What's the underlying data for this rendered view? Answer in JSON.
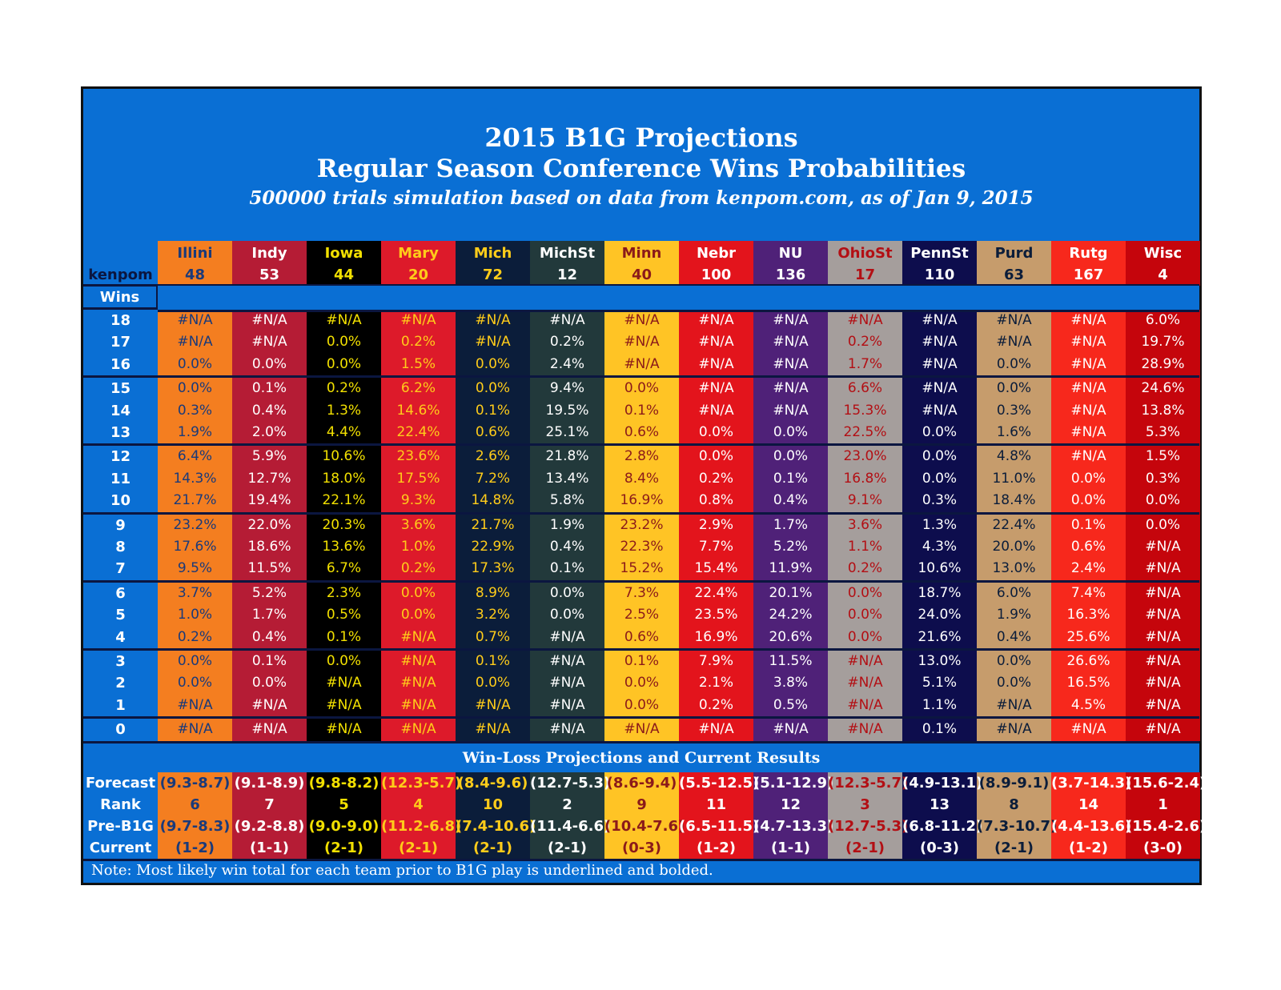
{
  "title": "2015 B1G Projections",
  "title2": "Regular Season Conference Wins Probabilities",
  "subtitle": "500000 trials simulation based on data from kenpom.com, as of Jan 9, 2015",
  "kenpom_label": "kenpom",
  "wins_label": "Wins",
  "wl_title": "Win-Loss Projections and Current Results",
  "row_labels": {
    "forecast": "Forecast",
    "rank": "Rank",
    "preb1g": "Pre-B1G",
    "current": "Current"
  },
  "note": "Note: Most likely win total for each team prior to B1G play is underlined and bolded.",
  "chart_data": {
    "type": "table",
    "title": "2015 B1G Projections",
    "subtitle": "Regular Season Conference Wins Probabilities",
    "wins": [
      "18",
      "17",
      "16",
      "15",
      "14",
      "13",
      "12",
      "11",
      "10",
      "9",
      "8",
      "7",
      "6",
      "5",
      "4",
      "3",
      "2",
      "1",
      "0"
    ],
    "teams": [
      {
        "name": "Illini",
        "kenpom": "48",
        "bg": "#f47e20",
        "fg": "#1a3a7a",
        "probs": [
          "#N/A",
          "#N/A",
          "0.0%",
          "0.0%",
          "0.3%",
          "1.9%",
          "6.4%",
          "14.3%",
          "21.7%",
          "23.2%",
          "17.6%",
          "9.5%",
          "3.7%",
          "1.0%",
          "0.2%",
          "0.0%",
          "0.0%",
          "#N/A",
          "#N/A"
        ],
        "forecast": "(9.3-8.7)",
        "rank": "6",
        "preb1g": "(9.7-8.3)",
        "current": "(1-2)"
      },
      {
        "name": "Indy",
        "kenpom": "53",
        "bg": "#b51c35",
        "fg": "#ffffff",
        "probs": [
          "#N/A",
          "#N/A",
          "0.0%",
          "0.1%",
          "0.4%",
          "2.0%",
          "5.9%",
          "12.7%",
          "19.4%",
          "22.0%",
          "18.6%",
          "11.5%",
          "5.2%",
          "1.7%",
          "0.4%",
          "0.1%",
          "0.0%",
          "#N/A",
          "#N/A"
        ],
        "forecast": "(9.1-8.9)",
        "rank": "7",
        "preb1g": "(9.2-8.8)",
        "current": "(1-1)"
      },
      {
        "name": "Iowa",
        "kenpom": "44",
        "bg": "#000000",
        "fg": "#f2e000",
        "probs": [
          "#N/A",
          "0.0%",
          "0.0%",
          "0.2%",
          "1.3%",
          "4.4%",
          "10.6%",
          "18.0%",
          "22.1%",
          "20.3%",
          "13.6%",
          "6.7%",
          "2.3%",
          "0.5%",
          "0.1%",
          "0.0%",
          "#N/A",
          "#N/A",
          "#N/A"
        ],
        "forecast": "(9.8-8.2)",
        "rank": "5",
        "preb1g": "(9.0-9.0)",
        "current": "(2-1)"
      },
      {
        "name": "Mary",
        "kenpom": "20",
        "bg": "#dd1a2a",
        "fg": "#ffcc1a",
        "probs": [
          "#N/A",
          "0.2%",
          "1.5%",
          "6.2%",
          "14.6%",
          "22.4%",
          "23.6%",
          "17.5%",
          "9.3%",
          "3.6%",
          "1.0%",
          "0.2%",
          "0.0%",
          "0.0%",
          "#N/A",
          "#N/A",
          "#N/A",
          "#N/A",
          "#N/A"
        ],
        "forecast": "(12.3-5.7)",
        "rank": "4",
        "preb1g": "(11.2-6.8)",
        "current": "(2-1)"
      },
      {
        "name": "Mich",
        "kenpom": "72",
        "bg": "#0b1d3a",
        "fg": "#ffcc1a",
        "probs": [
          "#N/A",
          "#N/A",
          "0.0%",
          "0.0%",
          "0.1%",
          "0.6%",
          "2.6%",
          "7.2%",
          "14.8%",
          "21.7%",
          "22.9%",
          "17.3%",
          "8.9%",
          "3.2%",
          "0.7%",
          "0.1%",
          "0.0%",
          "#N/A",
          "#N/A"
        ],
        "forecast": "(8.4-9.6)",
        "rank": "10",
        "preb1g": "(7.4-10.6)",
        "current": "(2-1)"
      },
      {
        "name": "MichSt",
        "kenpom": "12",
        "bg": "#22393b",
        "fg": "#ffffff",
        "probs": [
          "#N/A",
          "0.2%",
          "2.4%",
          "9.4%",
          "19.5%",
          "25.1%",
          "21.8%",
          "13.4%",
          "5.8%",
          "1.9%",
          "0.4%",
          "0.1%",
          "0.0%",
          "0.0%",
          "#N/A",
          "#N/A",
          "#N/A",
          "#N/A",
          "#N/A"
        ],
        "forecast": "(12.7-5.3)",
        "rank": "2",
        "preb1g": "(11.4-6.6)",
        "current": "(2-1)"
      },
      {
        "name": "Minn",
        "kenpom": "40",
        "bg": "#ffc425",
        "fg": "#8b1a1a",
        "probs": [
          "#N/A",
          "#N/A",
          "#N/A",
          "0.0%",
          "0.1%",
          "0.6%",
          "2.8%",
          "8.4%",
          "16.9%",
          "23.2%",
          "22.3%",
          "15.2%",
          "7.3%",
          "2.5%",
          "0.6%",
          "0.1%",
          "0.0%",
          "0.0%",
          "#N/A"
        ],
        "forecast": "(8.6-9.4)",
        "rank": "9",
        "preb1g": "(10.4-7.6)",
        "current": "(0-3)"
      },
      {
        "name": "Nebr",
        "kenpom": "100",
        "bg": "#e3141c",
        "fg": "#ffffff",
        "probs": [
          "#N/A",
          "#N/A",
          "#N/A",
          "#N/A",
          "#N/A",
          "0.0%",
          "0.0%",
          "0.2%",
          "0.8%",
          "2.9%",
          "7.7%",
          "15.4%",
          "22.4%",
          "23.5%",
          "16.9%",
          "7.9%",
          "2.1%",
          "0.2%",
          "#N/A"
        ],
        "forecast": "(5.5-12.5)",
        "rank": "11",
        "preb1g": "(6.5-11.5)",
        "current": "(1-2)"
      },
      {
        "name": "NU",
        "kenpom": "136",
        "bg": "#4f2178",
        "fg": "#ffffff",
        "probs": [
          "#N/A",
          "#N/A",
          "#N/A",
          "#N/A",
          "#N/A",
          "0.0%",
          "0.0%",
          "0.1%",
          "0.4%",
          "1.7%",
          "5.2%",
          "11.9%",
          "20.1%",
          "24.2%",
          "20.6%",
          "11.5%",
          "3.8%",
          "0.5%",
          "#N/A"
        ],
        "forecast": "(5.1-12.9)",
        "rank": "12",
        "preb1g": "(4.7-13.3)",
        "current": "(1-1)"
      },
      {
        "name": "OhioSt",
        "kenpom": "17",
        "bg": "#a59e9c",
        "fg": "#b30f14",
        "probs": [
          "#N/A",
          "0.2%",
          "1.7%",
          "6.6%",
          "15.3%",
          "22.5%",
          "23.0%",
          "16.8%",
          "9.1%",
          "3.6%",
          "1.1%",
          "0.2%",
          "0.0%",
          "0.0%",
          "0.0%",
          "#N/A",
          "#N/A",
          "#N/A",
          "#N/A"
        ],
        "forecast": "(12.3-5.7)",
        "rank": "3",
        "preb1g": "(12.7-5.3)",
        "current": "(2-1)"
      },
      {
        "name": "PennSt",
        "kenpom": "110",
        "bg": "#0d0d4d",
        "fg": "#ffffff",
        "probs": [
          "#N/A",
          "#N/A",
          "#N/A",
          "#N/A",
          "#N/A",
          "0.0%",
          "0.0%",
          "0.0%",
          "0.3%",
          "1.3%",
          "4.3%",
          "10.6%",
          "18.7%",
          "24.0%",
          "21.6%",
          "13.0%",
          "5.1%",
          "1.1%",
          "0.1%"
        ],
        "forecast": "(4.9-13.1)",
        "rank": "13",
        "preb1g": "(6.8-11.2)",
        "current": "(0-3)"
      },
      {
        "name": "Purd",
        "kenpom": "63",
        "bg": "#c69c6c",
        "fg": "#0b1d3a",
        "probs": [
          "#N/A",
          "#N/A",
          "0.0%",
          "0.0%",
          "0.3%",
          "1.6%",
          "4.8%",
          "11.0%",
          "18.4%",
          "22.4%",
          "20.0%",
          "13.0%",
          "6.0%",
          "1.9%",
          "0.4%",
          "0.0%",
          "0.0%",
          "#N/A",
          "#N/A"
        ],
        "forecast": "(8.9-9.1)",
        "rank": "8",
        "preb1g": "(7.3-10.7)",
        "current": "(2-1)"
      },
      {
        "name": "Rutg",
        "kenpom": "167",
        "bg": "#f7281c",
        "fg": "#ffffff",
        "probs": [
          "#N/A",
          "#N/A",
          "#N/A",
          "#N/A",
          "#N/A",
          "#N/A",
          "#N/A",
          "0.0%",
          "0.0%",
          "0.1%",
          "0.6%",
          "2.4%",
          "7.4%",
          "16.3%",
          "25.6%",
          "26.6%",
          "16.5%",
          "4.5%",
          "#N/A"
        ],
        "forecast": "(3.7-14.3)",
        "rank": "14",
        "preb1g": "(4.4-13.6)",
        "current": "(1-2)"
      },
      {
        "name": "Wisc",
        "kenpom": "4",
        "bg": "#c5050c",
        "fg": "#ffffff",
        "probs": [
          "6.0%",
          "19.7%",
          "28.9%",
          "24.6%",
          "13.8%",
          "5.3%",
          "1.5%",
          "0.3%",
          "0.0%",
          "0.0%",
          "#N/A",
          "#N/A",
          "#N/A",
          "#N/A",
          "#N/A",
          "#N/A",
          "#N/A",
          "#N/A",
          "#N/A"
        ],
        "forecast": "(15.6-2.4)",
        "rank": "1",
        "preb1g": "(15.4-2.6)",
        "current": "(3-0)"
      }
    ]
  }
}
